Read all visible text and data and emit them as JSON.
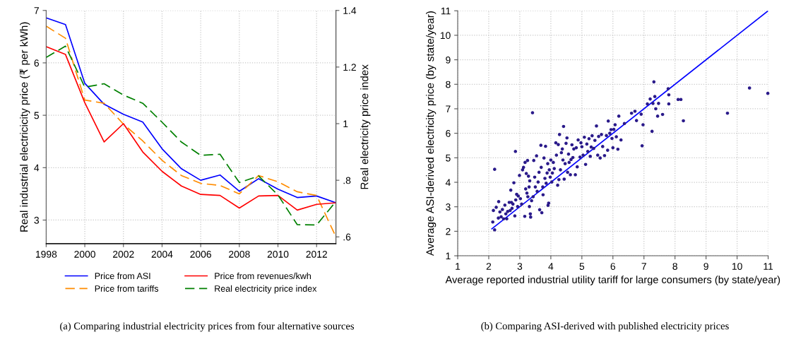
{
  "chart_data": [
    {
      "type": "line",
      "xlabel": null,
      "ylabel": "Real industrial electricicity price (₹ per kWh)",
      "y2label": "Real electricity price index",
      "x": [
        1998,
        1999,
        2000,
        2001,
        2002,
        2003,
        2004,
        2005,
        2006,
        2007,
        2008,
        2009,
        2010,
        2011,
        2012,
        2013
      ],
      "xlim": [
        1998,
        2013
      ],
      "xticks": [
        1998,
        2000,
        2002,
        2004,
        2006,
        2008,
        2010,
        2012
      ],
      "ylim": [
        2.55,
        7
      ],
      "yticks": [
        3,
        4,
        5,
        6,
        7
      ],
      "y2lim": [
        0.576,
        1.4
      ],
      "y2ticks": [
        {
          "value": 0.6,
          "label": ".6"
        },
        {
          "value": 0.8,
          "label": ".8"
        },
        1,
        {
          "value": 1.2,
          "label": "1.2"
        },
        {
          "value": 1.4,
          "label": "1.4"
        }
      ],
      "grid": true,
      "legend": "bottom",
      "annotations": [
        "(a) Comparing industrial electricity prices from four alternative sources"
      ],
      "series": [
        {
          "name": "Price from ASI",
          "color": "#0000ff",
          "line_style": "solid",
          "values": [
            6.86,
            6.73,
            5.61,
            5.21,
            5.02,
            4.87,
            4.36,
            3.98,
            3.76,
            3.86,
            3.55,
            3.79,
            3.59,
            3.43,
            3.46,
            3.33
          ]
        },
        {
          "name": "Price from tariffs",
          "color": "#ff8c00",
          "line_style": "dashed",
          "values": [
            6.7,
            6.47,
            5.29,
            5.23,
            4.83,
            4.51,
            4.14,
            3.85,
            3.7,
            3.66,
            3.5,
            3.85,
            3.73,
            3.54,
            3.47,
            2.68
          ]
        },
        {
          "name": "Price from revenues/kwh",
          "color": "#ff0000",
          "line_style": "solid",
          "values": [
            6.31,
            6.16,
            5.24,
            4.49,
            4.84,
            4.3,
            3.93,
            3.65,
            3.49,
            3.47,
            3.23,
            3.46,
            3.47,
            3.19,
            3.3,
            3.33
          ]
        },
        {
          "name": "Real electricity price index",
          "color": "#008000",
          "line_style": "dashed",
          "axis": "y2",
          "values": [
            1.234,
            1.274,
            1.129,
            1.141,
            1.101,
            1.072,
            1.005,
            0.935,
            0.888,
            0.892,
            0.792,
            0.815,
            0.748,
            0.643,
            0.642,
            0.725
          ]
        }
      ]
    },
    {
      "type": "scatter",
      "xlabel": "Average reported industrial utility tariff for large consumers (by state/year)",
      "ylabel": "Average ASI-derived electricity price (by state/year)",
      "xlim": [
        1,
        11
      ],
      "xticks": [
        1,
        2,
        3,
        4,
        5,
        6,
        7,
        8,
        9,
        10,
        11
      ],
      "ylim": [
        1,
        11
      ],
      "yticks": [
        1,
        2,
        3,
        4,
        5,
        6,
        7,
        8,
        9,
        10,
        11
      ],
      "grid": true,
      "annotations": [
        "(b) Comparing ASI-derived with published electricity prices"
      ],
      "series": [
        {
          "type": "scatter",
          "color": "#2a1a8a",
          "marker": "circle",
          "x": [
            2.19,
            2.13,
            2.15,
            2.19,
            2.24,
            2.32,
            2.31,
            2.36,
            2.4,
            2.44,
            2.48,
            2.52,
            2.55,
            2.58,
            2.61,
            2.66,
            2.69,
            2.71,
            2.73,
            2.75,
            2.78,
            2.81,
            2.84,
            2.86,
            2.87,
            2.9,
            2.93,
            2.95,
            2.99,
            3.02,
            3.06,
            3.09,
            3.12,
            3.16,
            3.17,
            3.19,
            3.21,
            3.23,
            3.25,
            3.26,
            3.28,
            3.3,
            3.31,
            3.32,
            3.34,
            3.35,
            3.38,
            3.41,
            3.43,
            3.45,
            3.48,
            3.5,
            3.54,
            3.56,
            3.59,
            3.62,
            3.64,
            3.68,
            3.69,
            3.71,
            3.74,
            3.75,
            3.78,
            3.81,
            3.83,
            3.85,
            3.88,
            3.9,
            3.91,
            3.93,
            3.95,
            3.98,
            4.0,
            4.03,
            4.05,
            4.08,
            4.11,
            4.16,
            4.18,
            4.22,
            4.24,
            4.26,
            4.28,
            4.31,
            4.34,
            4.37,
            4.39,
            4.41,
            4.43,
            4.46,
            4.49,
            4.52,
            4.54,
            4.57,
            4.59,
            4.63,
            4.65,
            4.68,
            4.71,
            4.74,
            4.79,
            4.82,
            4.85,
            4.88,
            4.94,
            4.97,
            5.0,
            5.04,
            5.08,
            5.12,
            5.16,
            5.19,
            5.23,
            5.27,
            5.3,
            5.33,
            5.38,
            5.42,
            5.47,
            5.51,
            5.54,
            5.59,
            5.63,
            5.67,
            5.73,
            5.79,
            5.83,
            5.85,
            5.9,
            5.94,
            5.97,
            6.0,
            6.03,
            6.07,
            6.11,
            6.16,
            6.19,
            6.26,
            6.37,
            6.6,
            6.71,
            6.76,
            6.91,
            6.94,
            6.97,
            7.11,
            7.2,
            7.26,
            7.29,
            7.32,
            7.35,
            7.38,
            7.44,
            7.47,
            7.6,
            7.78,
            7.8,
            7.8,
            8.1,
            8.19,
            8.27,
            9.69,
            10.4,
            10.99
          ],
          "values": [
            4.53,
            2.38,
            2.85,
            2.06,
            2.98,
            3.21,
            2.54,
            2.79,
            2.59,
            2.89,
            2.51,
            3.07,
            2.71,
            2.51,
            2.81,
            3.18,
            2.85,
            3.68,
            3.18,
            2.94,
            3.11,
            3.98,
            2.63,
            5.26,
            3.28,
            3.51,
            3.01,
            3.44,
            4.28,
            3.33,
            3.11,
            4.51,
            4.61,
            2.61,
            4.81,
            3.73,
            4.36,
            3.56,
            4.89,
            3.41,
            4.25,
            3.81,
            3.01,
            4.06,
            2.71,
            2.58,
            3.25,
            6.84,
            3.41,
            4.89,
            4.21,
            3.81,
            5.08,
            3.63,
            4.01,
            4.41,
            2.88,
            5.51,
            4.61,
            2.76,
            3.81,
            3.49,
            4.99,
            4.16,
            5.47,
            3.96,
            4.38,
            4.76,
            3.06,
            3.15,
            4.51,
            4.21,
            4.91,
            4.01,
            4.38,
            4.81,
            4.56,
            5.61,
            5.11,
            3.88,
            5.54,
            4.11,
            5.95,
            4.51,
            5.21,
            5.36,
            4.91,
            6.28,
            4.13,
            4.76,
            5.59,
            5.81,
            4.41,
            5.15,
            4.81,
            4.31,
            4.93,
            5.53,
            5.01,
            5.36,
            4.31,
            5.41,
            4.63,
            5.73,
            5.03,
            5.61,
            5.45,
            5.11,
            5.84,
            4.73,
            5.56,
            5.26,
            5.78,
            5.06,
            5.44,
            5.9,
            5.38,
            5.71,
            6.3,
            5.11,
            5.87,
            4.99,
            5.95,
            5.46,
            5.09,
            5.91,
            5.31,
            6.5,
            6.0,
            6.15,
            5.79,
            5.41,
            6.16,
            6.35,
            5.86,
            5.35,
            6.7,
            5.73,
            6.4,
            6.82,
            6.9,
            6.52,
            6.78,
            5.49,
            6.35,
            7.2,
            7.4,
            6.08,
            7.22,
            8.1,
            7.5,
            7.0,
            6.7,
            7.22,
            6.77,
            7.82,
            7.57,
            7.2,
            7.38,
            7.38,
            6.51,
            6.82,
            7.85,
            7.63
          ]
        },
        {
          "type": "line",
          "color": "#0000ff",
          "line_style": "solid",
          "x": [
            2.1,
            11
          ],
          "values": [
            2.1,
            11
          ]
        }
      ]
    }
  ]
}
